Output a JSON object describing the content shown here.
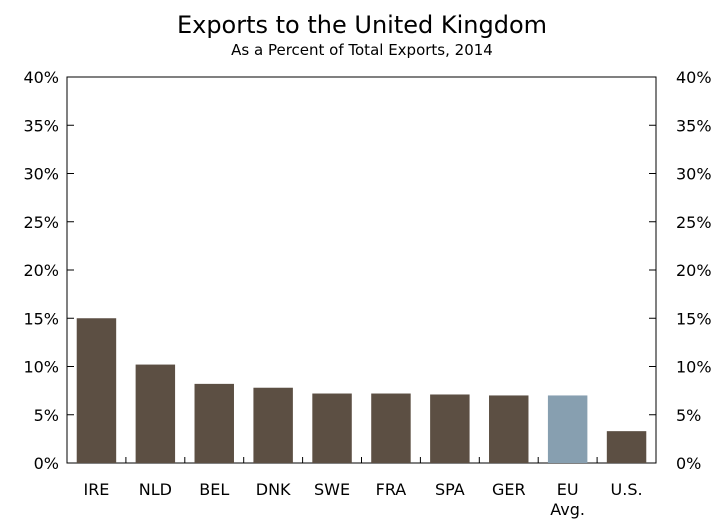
{
  "chart_data": {
    "type": "bar",
    "title": "Exports to the United Kingdom",
    "subtitle": "As a Percent of Total Exports, 2014",
    "xlabel": "",
    "ylabel": "",
    "ylim": [
      0,
      40
    ],
    "yticks": [
      0,
      5,
      10,
      15,
      20,
      25,
      30,
      35,
      40
    ],
    "ytick_labels": [
      "0%",
      "5%",
      "10%",
      "15%",
      "20%",
      "25%",
      "30%",
      "35%",
      "40%"
    ],
    "y_axis_sides": "left and right",
    "grid": false,
    "legend": "none",
    "categories": [
      "IRE",
      "NLD",
      "BEL",
      "DNK",
      "SWE",
      "FRA",
      "SPA",
      "GER",
      "EU Avg.",
      "U.S."
    ],
    "category_lines": [
      [
        "IRE"
      ],
      [
        "NLD"
      ],
      [
        "BEL"
      ],
      [
        "DNK"
      ],
      [
        "SWE"
      ],
      [
        "FRA"
      ],
      [
        "SPA"
      ],
      [
        "GER"
      ],
      [
        "EU",
        "Avg."
      ],
      [
        "U.S."
      ]
    ],
    "values": [
      15.0,
      10.2,
      8.2,
      7.8,
      7.2,
      7.2,
      7.1,
      7.0,
      7.0,
      3.3
    ],
    "colors": {
      "bar": "#5c4f43",
      "highlight_bar": "#879fb0",
      "axis": "#000000"
    },
    "highlight_category": "EU Avg."
  }
}
